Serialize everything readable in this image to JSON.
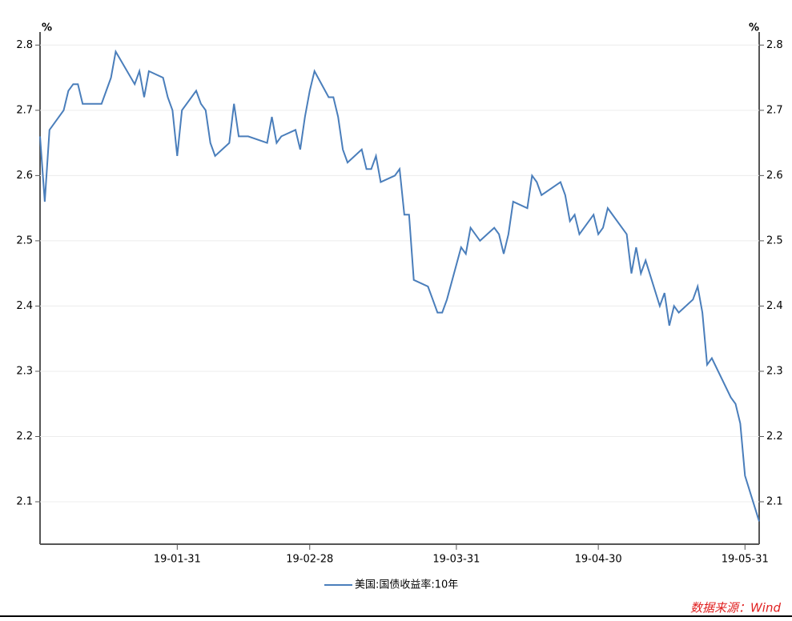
{
  "chart_data": {
    "type": "line",
    "y_label": "%",
    "y2_label": "%",
    "x": [
      "19-01-02",
      "19-01-03",
      "19-01-04",
      "19-01-07",
      "19-01-08",
      "19-01-09",
      "19-01-10",
      "19-01-11",
      "19-01-14",
      "19-01-15",
      "19-01-16",
      "19-01-17",
      "19-01-18",
      "19-01-22",
      "19-01-23",
      "19-01-24",
      "19-01-25",
      "19-01-28",
      "19-01-29",
      "19-01-30",
      "19-01-31",
      "19-02-01",
      "19-02-04",
      "19-02-05",
      "19-02-06",
      "19-02-07",
      "19-02-08",
      "19-02-11",
      "19-02-12",
      "19-02-13",
      "19-02-14",
      "19-02-15",
      "19-02-19",
      "19-02-20",
      "19-02-21",
      "19-02-22",
      "19-02-25",
      "19-02-26",
      "19-02-27",
      "19-02-28",
      "19-03-01",
      "19-03-04",
      "19-03-05",
      "19-03-06",
      "19-03-07",
      "19-03-08",
      "19-03-11",
      "19-03-12",
      "19-03-13",
      "19-03-14",
      "19-03-15",
      "19-03-18",
      "19-03-19",
      "19-03-20",
      "19-03-21",
      "19-03-22",
      "19-03-25",
      "19-03-26",
      "19-03-27",
      "19-03-28",
      "19-03-29",
      "19-04-01",
      "19-04-02",
      "19-04-03",
      "19-04-05",
      "19-04-08",
      "19-04-09",
      "19-04-10",
      "19-04-11",
      "19-04-12",
      "19-04-15",
      "19-04-16",
      "19-04-17",
      "19-04-18",
      "19-04-22",
      "19-04-23",
      "19-04-24",
      "19-04-25",
      "19-04-26",
      "19-04-29",
      "19-04-30",
      "19-05-01",
      "19-05-02",
      "19-05-06",
      "19-05-07",
      "19-05-08",
      "19-05-09",
      "19-05-10",
      "19-05-13",
      "19-05-14",
      "19-05-15",
      "19-05-16",
      "19-05-17",
      "19-05-20",
      "19-05-21",
      "19-05-22",
      "19-05-23",
      "19-05-24",
      "19-05-28",
      "19-05-29",
      "19-05-30",
      "19-05-31",
      "19-06-03"
    ],
    "series": [
      {
        "name": "美国:国债收益率:10年",
        "color": "#4a7ebb",
        "values": [
          2.66,
          2.56,
          2.67,
          2.7,
          2.73,
          2.74,
          2.74,
          2.71,
          2.71,
          2.71,
          2.73,
          2.75,
          2.79,
          2.74,
          2.76,
          2.72,
          2.76,
          2.75,
          2.72,
          2.7,
          2.63,
          2.7,
          2.73,
          2.71,
          2.7,
          2.65,
          2.63,
          2.65,
          2.71,
          2.66,
          2.66,
          2.66,
          2.65,
          2.69,
          2.65,
          2.66,
          2.67,
          2.64,
          2.69,
          2.73,
          2.76,
          2.72,
          2.72,
          2.69,
          2.64,
          2.62,
          2.64,
          2.61,
          2.61,
          2.63,
          2.59,
          2.6,
          2.61,
          2.54,
          2.54,
          2.44,
          2.43,
          2.41,
          2.39,
          2.39,
          2.41,
          2.49,
          2.48,
          2.52,
          2.5,
          2.52,
          2.51,
          2.48,
          2.51,
          2.56,
          2.55,
          2.6,
          2.59,
          2.57,
          2.59,
          2.57,
          2.53,
          2.54,
          2.51,
          2.54,
          2.51,
          2.52,
          2.55,
          2.51,
          2.45,
          2.49,
          2.45,
          2.47,
          2.4,
          2.42,
          2.37,
          2.4,
          2.39,
          2.41,
          2.43,
          2.39,
          2.31,
          2.32,
          2.26,
          2.25,
          2.22,
          2.14,
          2.07
        ]
      }
    ],
    "xlim": [
      "19-01-02",
      "19-06-03"
    ],
    "xticks": [
      "19-01-31",
      "19-02-28",
      "19-03-31",
      "19-04-30",
      "19-05-31"
    ],
    "ylim": [
      2.035,
      2.82
    ],
    "yticks": [
      2.1,
      2.2,
      2.3,
      2.4,
      2.5,
      2.6,
      2.7,
      2.8
    ],
    "y2lim": [
      2.035,
      2.82
    ],
    "y2ticks": [
      2.1,
      2.2,
      2.3,
      2.4,
      2.5,
      2.6,
      2.7,
      2.8
    ],
    "grid": true,
    "legend": "bottom",
    "source": "数据来源：Wind"
  }
}
